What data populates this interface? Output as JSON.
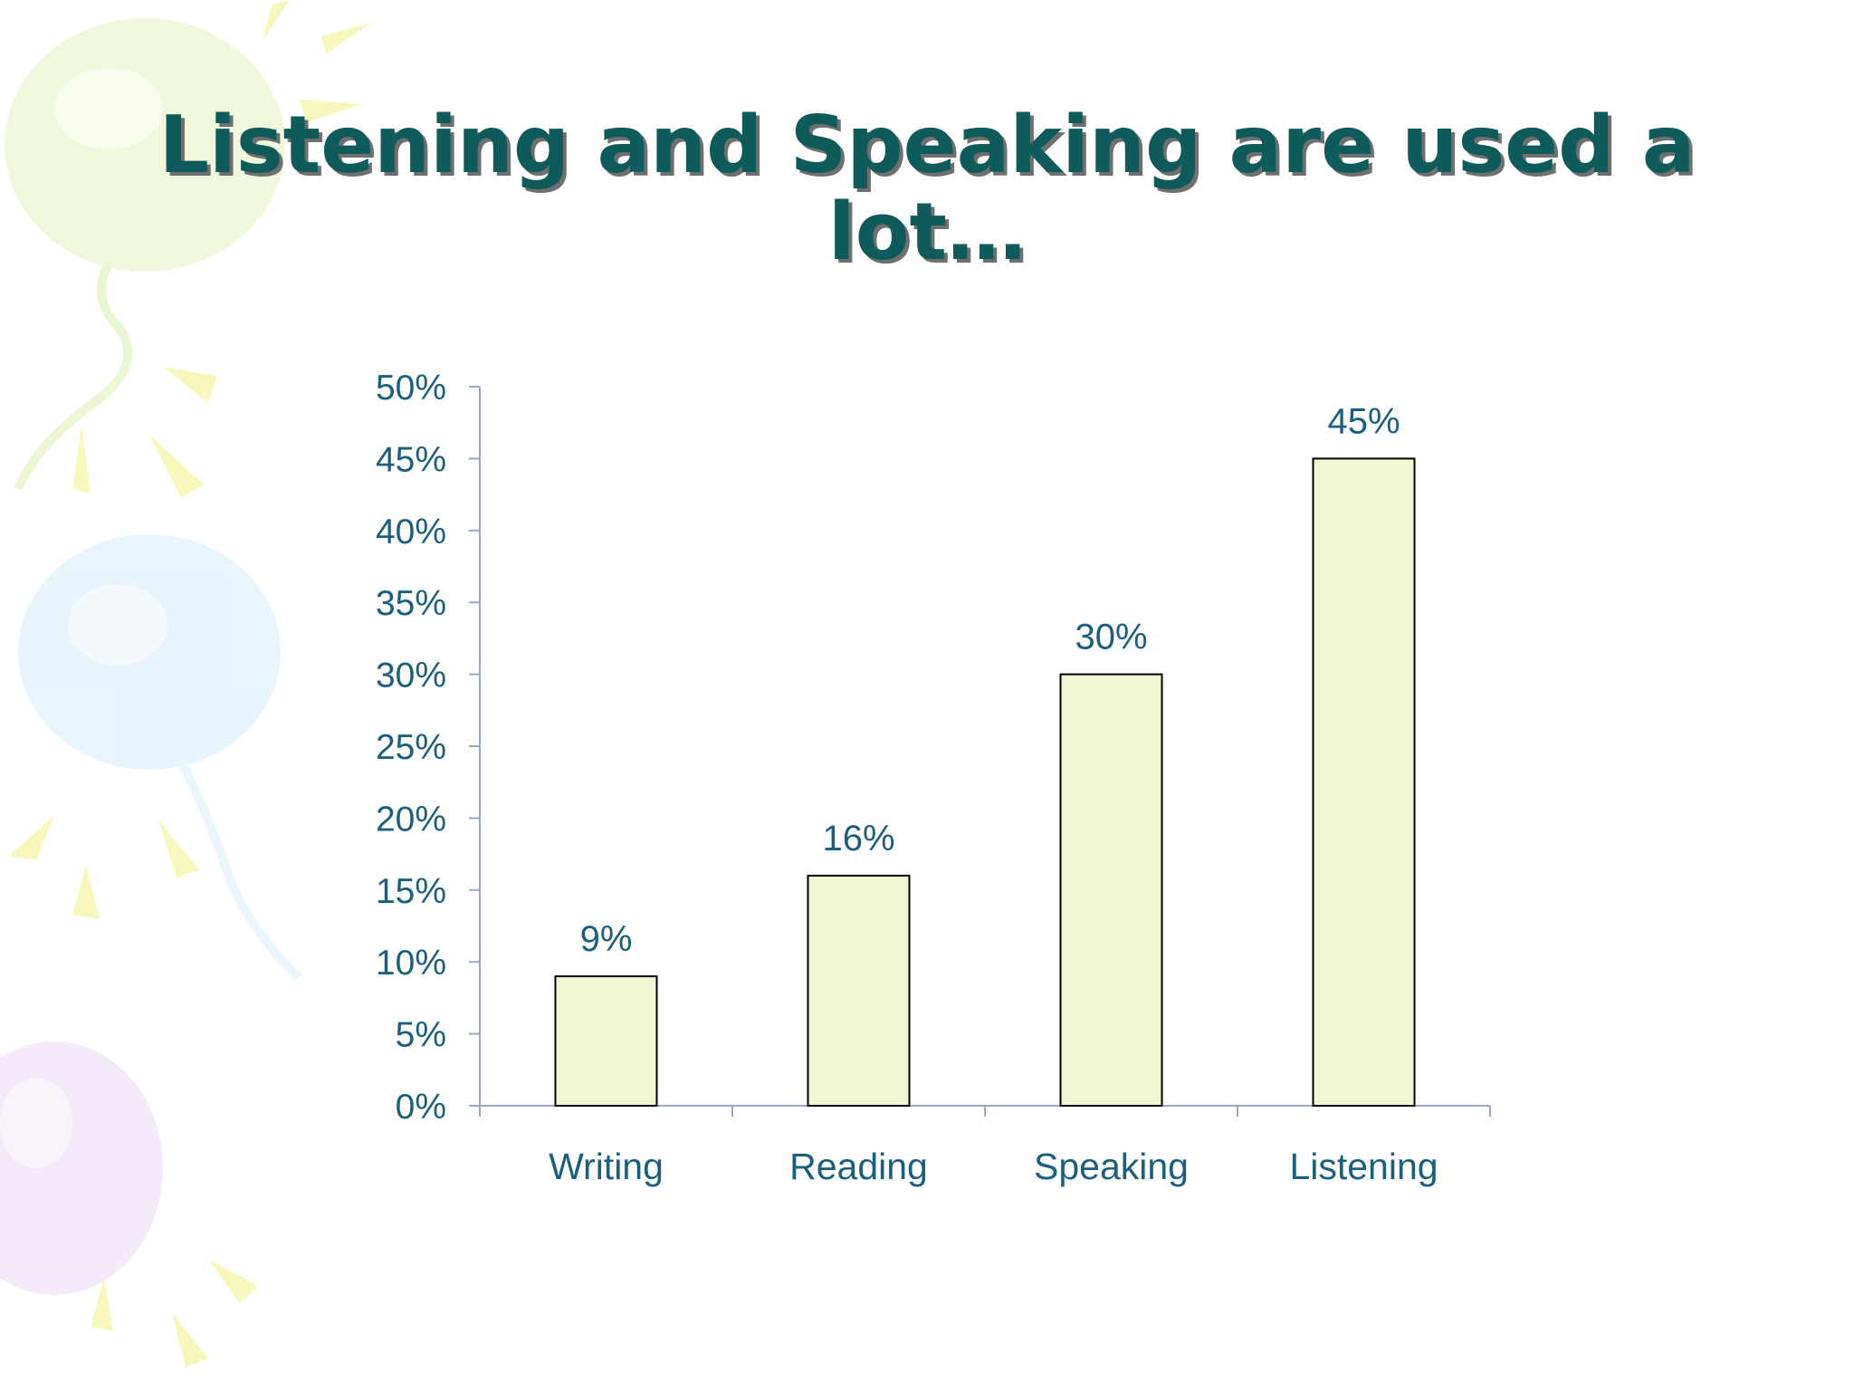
{
  "slide": {
    "title": "Listening and Speaking are used a lot…"
  },
  "colors": {
    "title": "#0f5b5b",
    "title_shadow": "#6f6f6f",
    "labels": "#1b5e7e",
    "bar_fill": "#eff8d2",
    "bar_stroke": "#000000",
    "axis": "#9aa7c0"
  },
  "decorations": [
    "green-balloon-icon",
    "blue-balloon-icon",
    "purple-balloon-icon",
    "sunburst-rays-icon"
  ],
  "chart_data": {
    "type": "bar",
    "title": "",
    "xlabel": "",
    "ylabel": "",
    "categories": [
      "Writing",
      "Reading",
      "Speaking",
      "Listening"
    ],
    "values": [
      9,
      16,
      30,
      45
    ],
    "value_labels": [
      "9%",
      "16%",
      "30%",
      "45%"
    ],
    "ylim": [
      0,
      50
    ],
    "ytick_values": [
      0,
      5,
      10,
      15,
      20,
      25,
      30,
      35,
      40,
      45,
      50
    ],
    "ytick_labels": [
      "0%",
      "5%",
      "10%",
      "15%",
      "20%",
      "25%",
      "30%",
      "35%",
      "40%",
      "45%",
      "50%"
    ],
    "grid": false,
    "legend": "none"
  }
}
